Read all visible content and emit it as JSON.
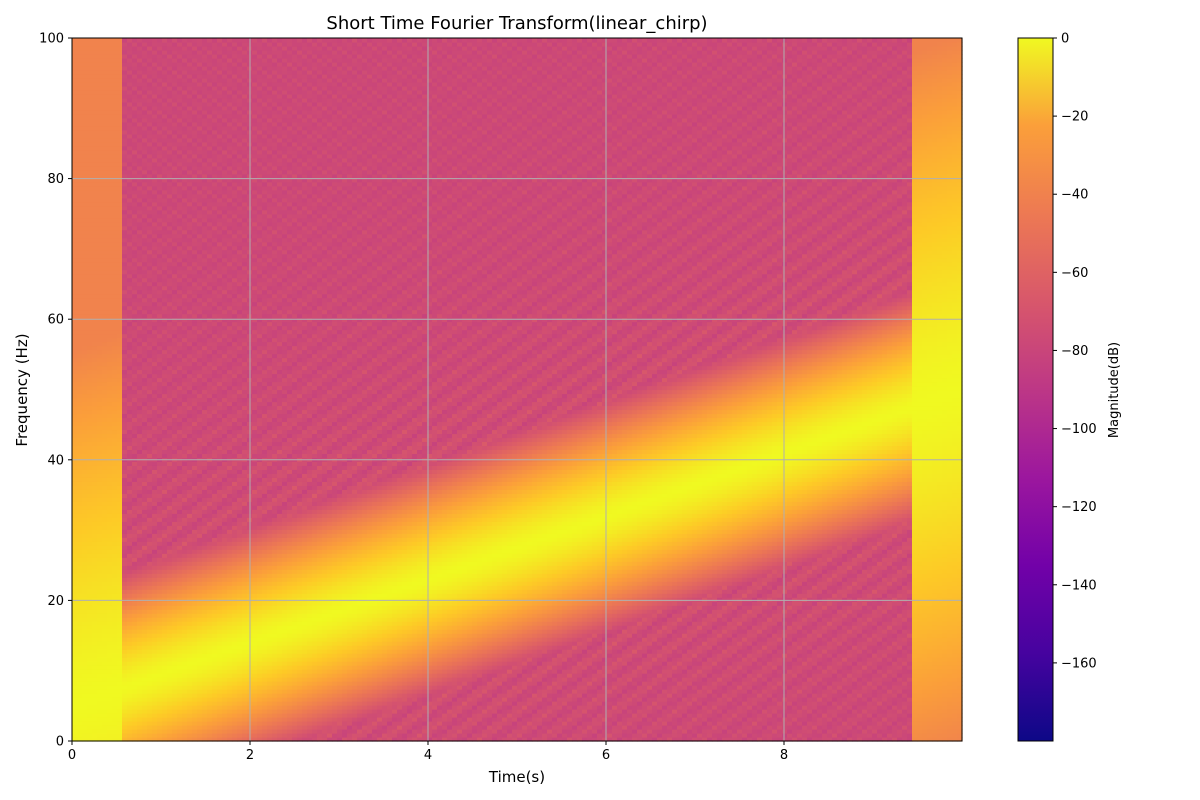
{
  "chart_data": {
    "type": "heatmap",
    "title": "Short Time Fourier Transform(linear_chirp)",
    "xlabel": "Time(s)",
    "ylabel": "Frequency (Hz)",
    "xlim": [
      0,
      10
    ],
    "ylim": [
      0,
      100
    ],
    "x_ticks": [
      0,
      2,
      4,
      6,
      8
    ],
    "y_ticks": [
      0,
      20,
      40,
      60,
      80,
      100
    ],
    "grid": true,
    "colormap": "plasma",
    "colorbar": {
      "label": "Magnitude(dB)",
      "vmin": -180,
      "vmax": 0,
      "ticks": [
        0,
        -20,
        -40,
        -60,
        -80,
        -100,
        -120,
        -140,
        -160
      ]
    },
    "signal": {
      "description": "linear chirp",
      "f0_hz": 5,
      "f1_hz": 50,
      "duration_s": 10,
      "ridge_peak_db": 0,
      "background_db": -85,
      "edge_region_db": -55,
      "transient_onset_s": 0.58,
      "transient_end_s": 9.42
    },
    "colors": {
      "grid": "#b0b0b0",
      "axis": "#000000"
    }
  }
}
